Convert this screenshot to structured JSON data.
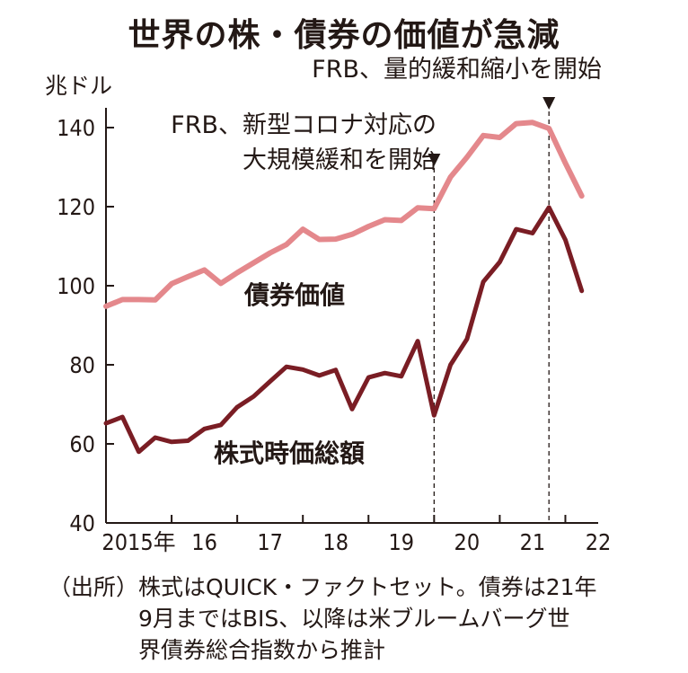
{
  "chart_data": {
    "type": "line",
    "title": "世界の株・債券の価値が急減",
    "ylabel": "兆ドル",
    "ylim": [
      40,
      145
    ],
    "yticks": [
      40,
      60,
      80,
      100,
      120,
      140
    ],
    "xlim": [
      2015.0,
      2022.5
    ],
    "xticks": [
      {
        "label": "2015年",
        "x": 2015.5
      },
      {
        "label": "16",
        "x": 2016.5
      },
      {
        "label": "17",
        "x": 2017.5
      },
      {
        "label": "18",
        "x": 2018.5
      },
      {
        "label": "19",
        "x": 2019.5
      },
      {
        "label": "20",
        "x": 2020.5
      },
      {
        "label": "21",
        "x": 2021.5
      },
      {
        "label": "22",
        "x": 2022.5
      }
    ],
    "series": [
      {
        "name": "債券価値",
        "color": "#e4888c",
        "points": [
          [
            2015.0,
            94.8
          ],
          [
            2015.25,
            96.5
          ],
          [
            2015.5,
            96.5
          ],
          [
            2015.75,
            96.4
          ],
          [
            2016.0,
            100.5
          ],
          [
            2016.25,
            102.3
          ],
          [
            2016.5,
            104.0
          ],
          [
            2016.75,
            100.6
          ],
          [
            2017.0,
            103.3
          ],
          [
            2017.25,
            105.8
          ],
          [
            2017.5,
            108.3
          ],
          [
            2017.75,
            110.4
          ],
          [
            2018.0,
            114.3
          ],
          [
            2018.25,
            111.7
          ],
          [
            2018.5,
            111.8
          ],
          [
            2018.75,
            113.0
          ],
          [
            2019.0,
            115.0
          ],
          [
            2019.25,
            116.7
          ],
          [
            2019.5,
            116.5
          ],
          [
            2019.75,
            119.7
          ],
          [
            2020.0,
            119.5
          ],
          [
            2020.25,
            127.5
          ],
          [
            2020.5,
            132.5
          ],
          [
            2020.75,
            138.0
          ],
          [
            2021.0,
            137.5
          ],
          [
            2021.25,
            141.0
          ],
          [
            2021.5,
            141.3
          ],
          [
            2021.75,
            139.8
          ],
          [
            2022.0,
            131.0
          ],
          [
            2022.25,
            122.7
          ]
        ]
      },
      {
        "name": "株式時価総額",
        "color": "#7a1d24",
        "points": [
          [
            2015.0,
            65.2
          ],
          [
            2015.25,
            66.8
          ],
          [
            2015.5,
            58.0
          ],
          [
            2015.75,
            61.6
          ],
          [
            2016.0,
            60.5
          ],
          [
            2016.25,
            60.8
          ],
          [
            2016.5,
            63.8
          ],
          [
            2016.75,
            64.8
          ],
          [
            2017.0,
            69.3
          ],
          [
            2017.25,
            72.0
          ],
          [
            2017.5,
            75.8
          ],
          [
            2017.75,
            79.5
          ],
          [
            2018.0,
            78.8
          ],
          [
            2018.25,
            77.3
          ],
          [
            2018.5,
            78.7
          ],
          [
            2018.75,
            68.8
          ],
          [
            2019.0,
            76.8
          ],
          [
            2019.25,
            77.9
          ],
          [
            2019.5,
            77.1
          ],
          [
            2019.75,
            86.0
          ],
          [
            2020.0,
            67.2
          ],
          [
            2020.25,
            80.0
          ],
          [
            2020.5,
            86.5
          ],
          [
            2020.75,
            101.0
          ],
          [
            2021.0,
            106.0
          ],
          [
            2021.25,
            114.3
          ],
          [
            2021.5,
            113.3
          ],
          [
            2021.75,
            119.8
          ],
          [
            2022.0,
            111.6
          ],
          [
            2022.25,
            98.7
          ]
        ]
      }
    ],
    "annotations": [
      {
        "lines": [
          "FRB、新型コロナ対応の",
          "大規模緩和を開始"
        ],
        "x": 2020.0
      },
      {
        "lines": [
          "FRB、量的緩和縮小を開始"
        ],
        "x": 2021.75
      }
    ],
    "source": [
      "（出所）株式はQUICK・ファクトセット。債券は21年",
      "9月まではBIS、以降は米ブルームバーグ世",
      "界債券総合指数から推計"
    ]
  }
}
